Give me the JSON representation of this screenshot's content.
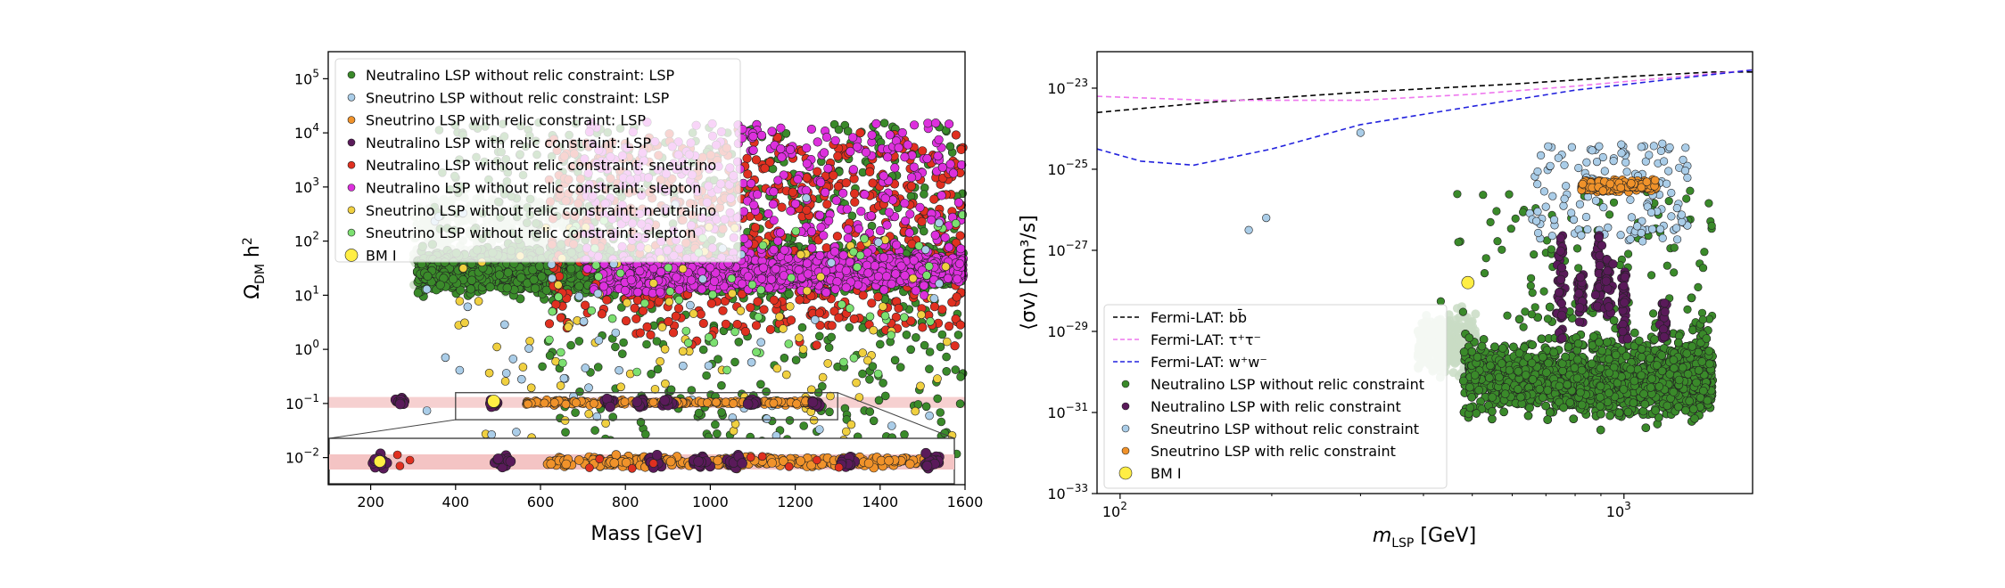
{
  "chart_data": [
    {
      "type": "scatter",
      "xlabel": "Mass [GeV]",
      "ylabel": "Ω_DM h²",
      "xlim": [
        100,
        1600
      ],
      "ylim_log10": [
        -2.5,
        5.5
      ],
      "yscale": "log",
      "x_ticks": [
        "200",
        "400",
        "600",
        "800",
        "1000",
        "1200",
        "1400",
        "1600"
      ],
      "y_ticks": [
        "10^-2",
        "10^-1",
        "10^0",
        "10^1",
        "10^2",
        "10^3",
        "10^4",
        "10^5"
      ],
      "relic_band_log10": [
        -1.08,
        -0.88
      ],
      "inset_zoom": {
        "xlim": [
          400,
          1300
        ],
        "ylim_log10": [
          -1.3,
          -0.8
        ]
      },
      "legend_location": "upper-left",
      "series": [
        {
          "name": "Neutralino LSP without relic constraint: LSP",
          "color": "#3a8a2a",
          "region": "mass 300–1600 GeV, Ω h² concentrated 10–100, scatter down to 0.01 and up to 10^5"
        },
        {
          "name": "Sneutrino LSP without relic constraint: LSP",
          "color": "#aacde8",
          "region": "mass 180–1600 GeV, sparse"
        },
        {
          "name": "Sneutrino LSP with relic constraint: LSP",
          "color": "#f0922a",
          "region": "Ω h² ≈ 0.1 band, mass 560–1250 GeV"
        },
        {
          "name": "Neutralino LSP with relic constraint: LSP",
          "color": "#5a1a5a",
          "region": "Ω h² ≈ 0.1, clusters near 270, 490, 760, 840, 900, 1100, 1250 GeV"
        },
        {
          "name": "Neutralino LSP without relic constraint: sneutrino",
          "color": "#e03020",
          "region": "mass 600–1600 GeV, Ω h² 1–10^5"
        },
        {
          "name": "Neutralino LSP without relic constraint: slepton",
          "color": "#dd30dd",
          "region": "mass 700–1600 GeV, Ω h² 10–10^4"
        },
        {
          "name": "Sneutrino LSP without relic constraint: neutralino",
          "color": "#f0d040",
          "region": "scattered"
        },
        {
          "name": "Sneutrino LSP without relic constraint: slepton",
          "color": "#7ce070",
          "region": "scattered"
        },
        {
          "name": "BM I",
          "color": "#ffee44",
          "points": [
            [
              490,
              0.11
            ]
          ]
        }
      ]
    },
    {
      "type": "scatter",
      "xlabel": "m_LSP [GeV]",
      "ylabel": "⟨σv⟩ [cm³/s]",
      "xscale": "log",
      "yscale": "log",
      "xlim": [
        90,
        1800
      ],
      "ylim_log10": [
        -33,
        -22.1
      ],
      "x_ticks": [
        "10^2",
        "10^3"
      ],
      "y_ticks": [
        "10^-33",
        "10^-31",
        "10^-29",
        "10^-27",
        "10^-25",
        "10^-23"
      ],
      "legend_location": "lower-left",
      "series": [
        {
          "name": "Fermi-LAT: bb̄",
          "style": "dashed-line",
          "color": "#000000",
          "x": [
            90,
            150,
            300,
            600,
            1000,
            1500,
            1800
          ],
          "y_log10": [
            -23.6,
            -23.35,
            -23.1,
            -22.9,
            -22.72,
            -22.6,
            -22.6
          ]
        },
        {
          "name": "Fermi-LAT: τ⁺τ⁻",
          "style": "dashed-line",
          "color": "#ee77ee",
          "x": [
            90,
            150,
            300,
            500,
            800,
            1200,
            1800
          ],
          "y_log10": [
            -23.2,
            -23.3,
            -23.3,
            -23.15,
            -22.95,
            -22.75,
            -22.55
          ]
        },
        {
          "name": "Fermi-LAT: w⁺w⁻",
          "style": "dashed-line",
          "color": "#2222dd",
          "x": [
            90,
            110,
            140,
            200,
            300,
            500,
            800,
            1200,
            1800
          ],
          "y_log10": [
            -24.5,
            -24.8,
            -24.9,
            -24.5,
            -23.9,
            -23.45,
            -23.05,
            -22.8,
            -22.55
          ]
        },
        {
          "name": "Neutralino LSP without relic constraint",
          "color": "#3a8a2a",
          "region": "m_LSP 400–1500 GeV, ⟨σv⟩ 10^-31.8–10^-28.5, sparse outliers up to 10^-25"
        },
        {
          "name": "Neutralino LSP with relic constraint",
          "color": "#5a1a5a",
          "region": "vertical clusters near 750, 820, 900, 1000, 1200 GeV, ⟨σv⟩ 10^-29.2–10^-26.4"
        },
        {
          "name": "Sneutrino LSP without relic constraint",
          "color": "#aacde8",
          "region": "m_LSP 180–1400 GeV, ⟨σv⟩ 10^-26.5–10^-24"
        },
        {
          "name": "Sneutrino LSP with relic constraint",
          "color": "#f0922a",
          "region": "m_LSP 850–1150 GeV, ⟨σv⟩ ≈ 10^-25.3"
        },
        {
          "name": "BM I",
          "color": "#ffee44",
          "points": [
            [
              490,
              1.6e-28
            ]
          ]
        }
      ]
    }
  ]
}
